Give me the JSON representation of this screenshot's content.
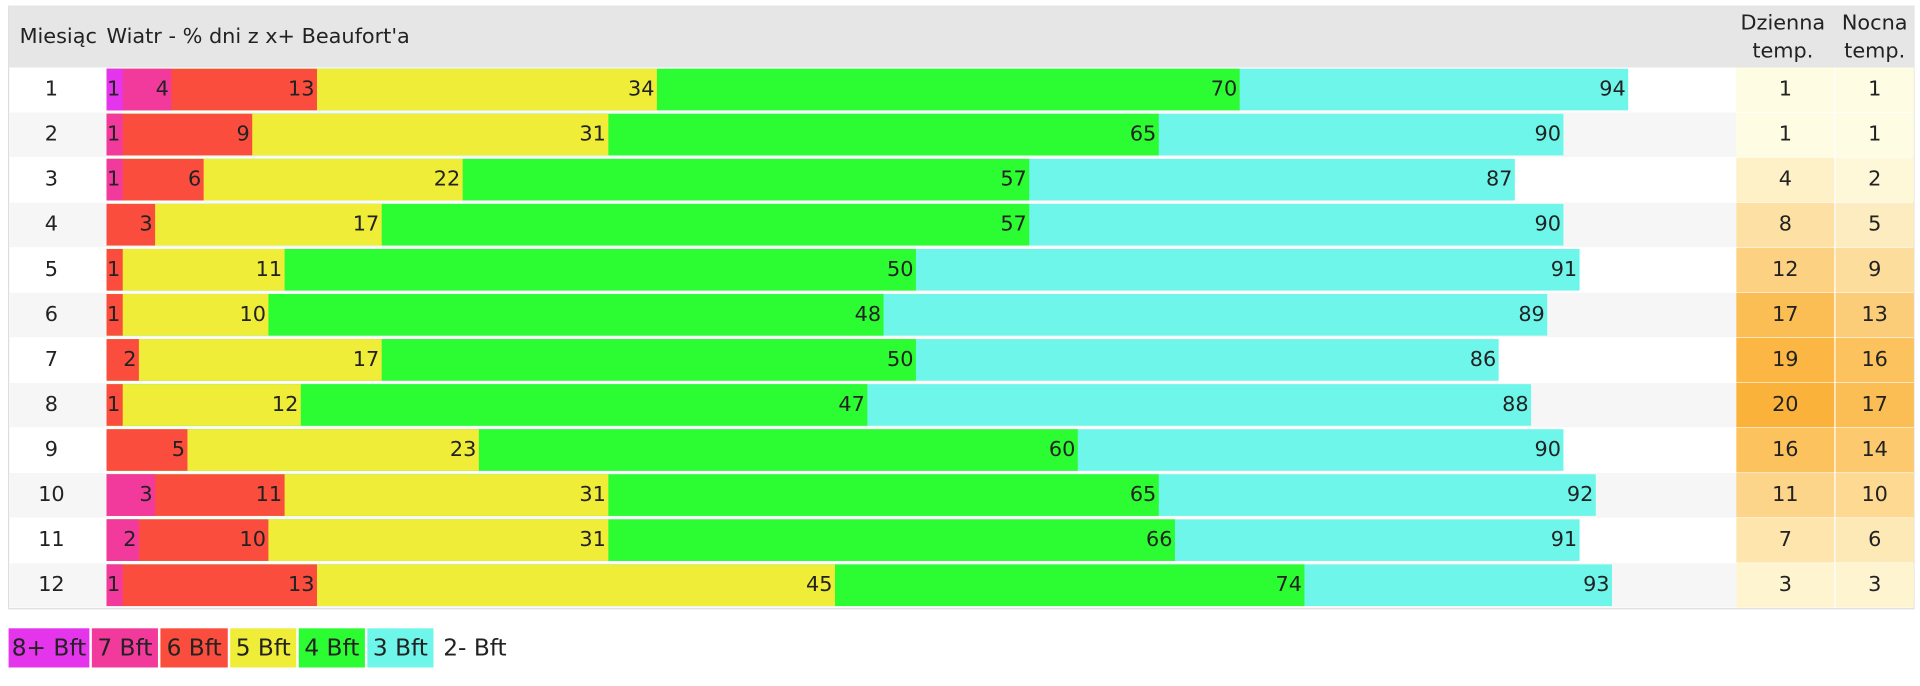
{
  "chart_data": {
    "type": "nested-bar",
    "month_header": "Miesiąc",
    "title": "Wiatr - % dni z x+ Beaufort'a",
    "day_header": [
      "Dzienna",
      "temp."
    ],
    "night_header": [
      "Nocna",
      "temp."
    ],
    "categories": [
      "1",
      "2",
      "3",
      "4",
      "5",
      "6",
      "7",
      "8",
      "9",
      "10",
      "11",
      "12"
    ],
    "xlim": [
      0,
      100
    ],
    "series": [
      {
        "name": "8+ Bft",
        "color": "#e535ec",
        "values": [
          1,
          null,
          null,
          null,
          null,
          null,
          null,
          null,
          null,
          null,
          null,
          null
        ]
      },
      {
        "name": "7 Bft",
        "color": "#f23a9c",
        "values": [
          4,
          1,
          1,
          null,
          null,
          null,
          null,
          null,
          null,
          3,
          2,
          1
        ]
      },
      {
        "name": "6 Bft",
        "color": "#fb4d3d",
        "values": [
          13,
          9,
          6,
          3,
          1,
          1,
          2,
          1,
          5,
          11,
          10,
          13
        ]
      },
      {
        "name": "5 Bft",
        "color": "#efed38",
        "values": [
          34,
          31,
          22,
          17,
          11,
          10,
          17,
          12,
          23,
          31,
          31,
          45
        ]
      },
      {
        "name": "4 Bft",
        "color": "#2bfd32",
        "values": [
          70,
          65,
          57,
          57,
          50,
          48,
          50,
          47,
          60,
          65,
          66,
          74
        ]
      },
      {
        "name": "3 Bft",
        "color": "#6ff6ea",
        "values": [
          94,
          90,
          87,
          90,
          91,
          89,
          86,
          88,
          90,
          92,
          91,
          93
        ]
      }
    ],
    "remainder_label": "2- Bft",
    "day_temp": [
      1,
      1,
      4,
      8,
      12,
      17,
      19,
      20,
      16,
      11,
      7,
      3
    ],
    "night_temp": [
      1,
      1,
      2,
      5,
      9,
      13,
      16,
      17,
      14,
      10,
      6,
      3
    ]
  }
}
